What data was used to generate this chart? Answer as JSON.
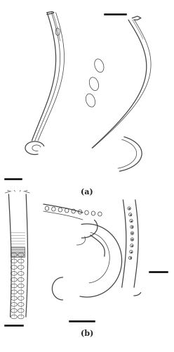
{
  "figure_width": 2.48,
  "figure_height": 5.0,
  "dpi": 100,
  "background_color": "#ffffff",
  "label_a": "(a)",
  "label_b": "(b)",
  "label_fontsize": 8,
  "label_fontweight": "bold",
  "line_color": "#444444",
  "scale_bar_color": "#000000"
}
